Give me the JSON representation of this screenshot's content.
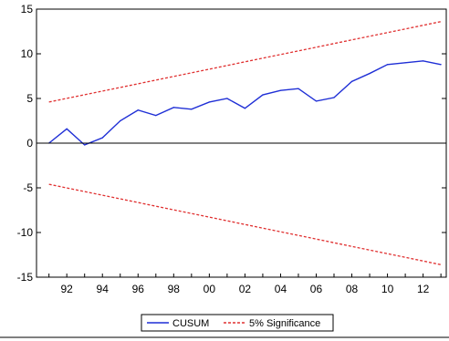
{
  "chart_data": {
    "type": "line",
    "x": [
      1991,
      1992,
      1993,
      1994,
      1995,
      1996,
      1997,
      1998,
      1999,
      2000,
      2001,
      2002,
      2003,
      2004,
      2005,
      2006,
      2007,
      2008,
      2009,
      2010,
      2011,
      2012,
      2013
    ],
    "x_tick_labels": [
      {
        "x": 1992,
        "label": "92"
      },
      {
        "x": 1994,
        "label": "94"
      },
      {
        "x": 1996,
        "label": "96"
      },
      {
        "x": 1998,
        "label": "98"
      },
      {
        "x": 2000,
        "label": "00"
      },
      {
        "x": 2002,
        "label": "02"
      },
      {
        "x": 2004,
        "label": "04"
      },
      {
        "x": 2006,
        "label": "06"
      },
      {
        "x": 2008,
        "label": "08"
      },
      {
        "x": 2010,
        "label": "10"
      },
      {
        "x": 2012,
        "label": "12"
      }
    ],
    "xlim": [
      1990.3,
      2013.3
    ],
    "ylim": [
      -15,
      15
    ],
    "y_ticks": [
      -15,
      -10,
      -5,
      0,
      5,
      10,
      15
    ],
    "y_tick_labels": [
      "-15",
      "-10",
      "-5",
      "0",
      "5",
      "10",
      "15"
    ],
    "zero_line": true,
    "grid": false,
    "legend_position": "bottom",
    "series": [
      {
        "name": "CUSUM",
        "color": "#1f2fd6",
        "style": "solid",
        "values": [
          0.0,
          1.6,
          -0.2,
          0.6,
          2.5,
          3.7,
          3.1,
          4.0,
          3.8,
          4.6,
          5.0,
          3.9,
          5.4,
          5.9,
          6.1,
          4.7,
          5.1,
          6.9,
          7.8,
          8.8,
          9.0,
          9.2,
          8.8
        ]
      },
      {
        "name": "5% Significance",
        "color": "#e03030",
        "style": "dashed",
        "lines": [
          {
            "x": [
              1991,
              2013
            ],
            "values": [
              4.6,
              13.6
            ]
          },
          {
            "x": [
              1991,
              2013
            ],
            "values": [
              -4.6,
              -13.6
            ]
          }
        ]
      }
    ]
  }
}
